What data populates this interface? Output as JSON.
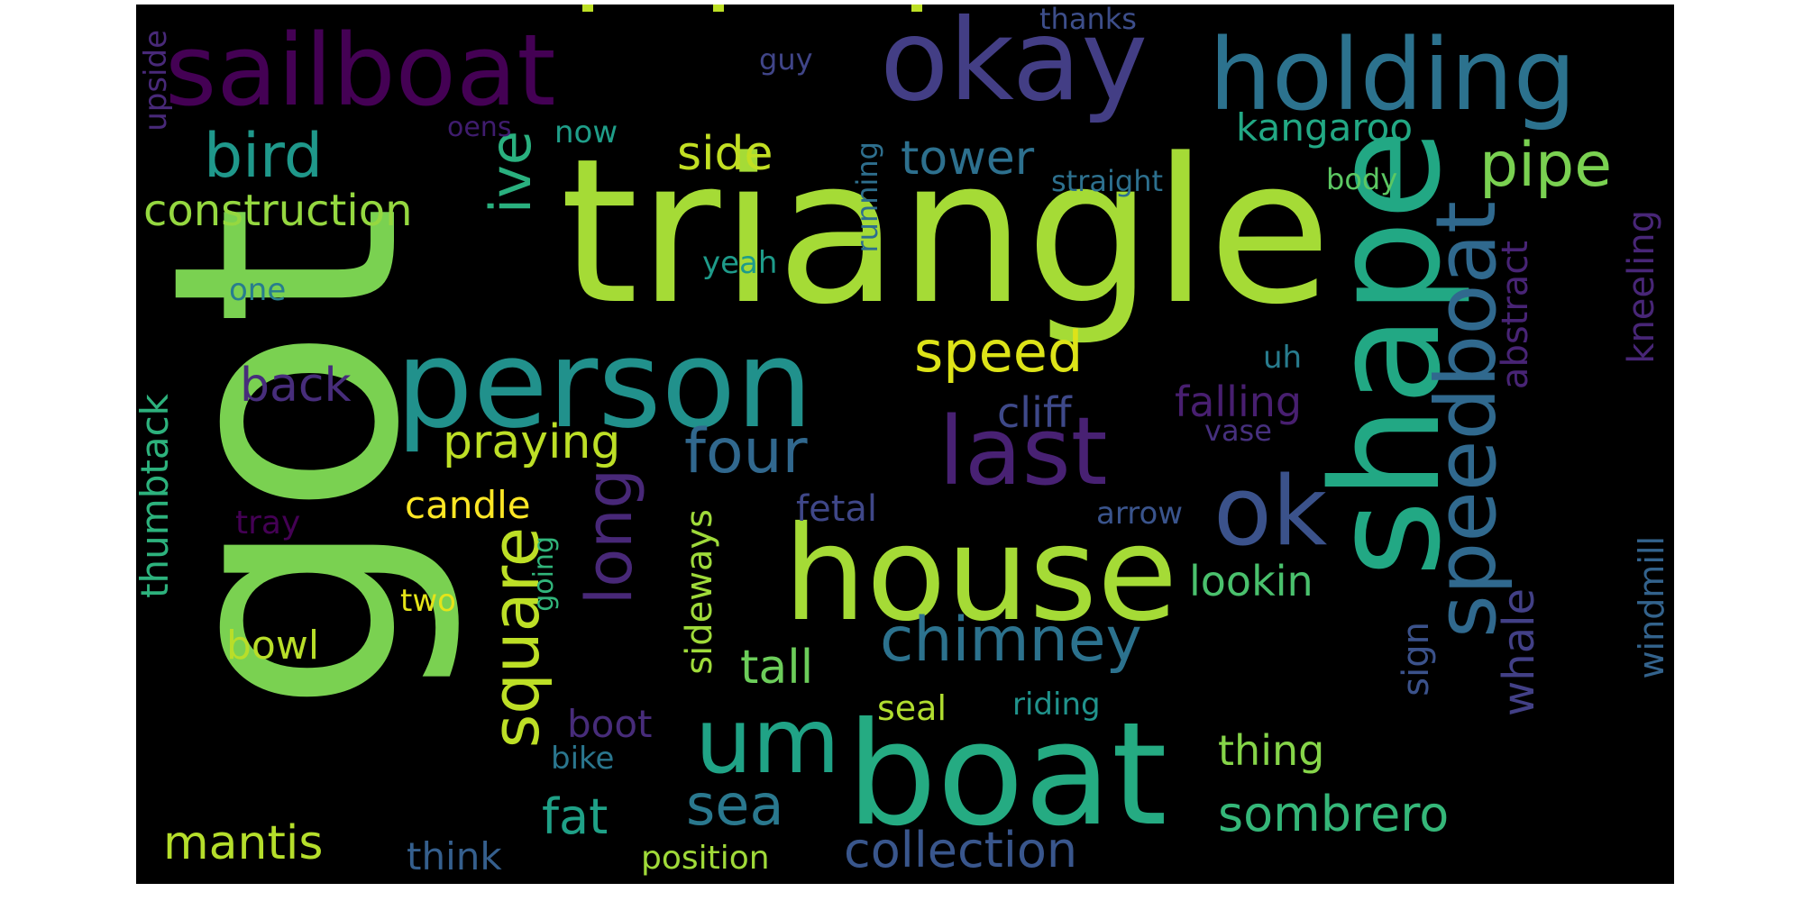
{
  "words": {
    "got": {
      "text": "got",
      "color": "#7ad151",
      "orientation": "vertical"
    },
    "triangle": {
      "text": "triangle",
      "color": "#a5db36",
      "orientation": "horizontal"
    },
    "shape": {
      "text": "shape",
      "color": "#22a884",
      "orientation": "vertical"
    },
    "boat": {
      "text": "boat",
      "color": "#25ab82",
      "orientation": "horizontal"
    },
    "house": {
      "text": "house",
      "color": "#a5db36",
      "orientation": "horizontal"
    },
    "person": {
      "text": "person",
      "color": "#21918c",
      "orientation": "horizontal"
    },
    "okay": {
      "text": "okay",
      "color": "#433e85",
      "orientation": "horizontal"
    },
    "sailboat": {
      "text": "sailboat",
      "color": "#440154",
      "orientation": "horizontal"
    },
    "holding": {
      "text": "holding",
      "color": "#2c728e",
      "orientation": "horizontal"
    },
    "speedboat": {
      "text": "speedboat",
      "color": "#30698e",
      "orientation": "vertical"
    },
    "last": {
      "text": "last",
      "color": "#482173",
      "orientation": "horizontal"
    },
    "ok": {
      "text": "ok",
      "color": "#3b528b",
      "orientation": "horizontal"
    },
    "um": {
      "text": "um",
      "color": "#20a386",
      "orientation": "horizontal"
    },
    "long": {
      "text": "long",
      "color": "#482878",
      "orientation": "vertical"
    },
    "square": {
      "text": "square",
      "color": "#bddf26",
      "orientation": "vertical"
    },
    "chimney": {
      "text": "chimney",
      "color": "#2c728e",
      "orientation": "horizontal"
    },
    "four": {
      "text": "four",
      "color": "#31688e",
      "orientation": "horizontal"
    },
    "pipe": {
      "text": "pipe",
      "color": "#7ad151",
      "orientation": "horizontal"
    },
    "bird": {
      "text": "bird",
      "color": "#1f988b",
      "orientation": "horizontal"
    },
    "sombrero": {
      "text": "sombrero",
      "color": "#35b779",
      "orientation": "horizontal"
    },
    "collection": {
      "text": "collection",
      "color": "#39568c",
      "orientation": "horizontal"
    },
    "sea": {
      "text": "sea",
      "color": "#2a788e",
      "orientation": "horizontal"
    },
    "speed": {
      "text": "speed",
      "color": "#dde318",
      "orientation": "horizontal"
    },
    "ive": {
      "text": "ive",
      "color": "#2ab07f",
      "orientation": "vertical"
    },
    "praying": {
      "text": "praying",
      "color": "#bddf26",
      "orientation": "horizontal"
    },
    "construction": {
      "text": "construction",
      "color": "#95d840",
      "orientation": "horizontal"
    },
    "mantis": {
      "text": "mantis",
      "color": "#b5de2b",
      "orientation": "horizontal"
    },
    "tall": {
      "text": "tall",
      "color": "#6ccd5a",
      "orientation": "horizontal"
    },
    "fat": {
      "text": "fat",
      "color": "#1fa187",
      "orientation": "horizontal"
    },
    "side": {
      "text": "side",
      "color": "#c2df23",
      "orientation": "horizontal"
    },
    "tower": {
      "text": "tower",
      "color": "#2d708e",
      "orientation": "horizontal"
    },
    "kangaroo": {
      "text": "kangaroo",
      "color": "#22a884",
      "orientation": "horizontal"
    },
    "back": {
      "text": "back",
      "color": "#472d7b",
      "orientation": "horizontal"
    },
    "whale": {
      "text": "whale",
      "color": "#424086",
      "orientation": "vertical"
    },
    "thing": {
      "text": "thing",
      "color": "#86d549",
      "orientation": "horizontal"
    },
    "cliff": {
      "text": "cliff",
      "color": "#3e4989",
      "orientation": "horizontal"
    },
    "falling": {
      "text": "falling",
      "color": "#481f70",
      "orientation": "horizontal"
    },
    "lookin": {
      "text": "lookin",
      "color": "#4ac16d",
      "orientation": "horizontal"
    },
    "candle": {
      "text": "candle",
      "color": "#fde725",
      "orientation": "horizontal"
    },
    "bowl": {
      "text": "bowl",
      "color": "#b8de29",
      "orientation": "horizontal"
    },
    "thumbtack": {
      "text": "thumbtack",
      "color": "#2db27d",
      "orientation": "vertical"
    },
    "abstract": {
      "text": "abstract",
      "color": "#482475",
      "orientation": "vertical"
    },
    "kneeling": {
      "text": "kneeling",
      "color": "#482677",
      "orientation": "vertical"
    },
    "windmill": {
      "text": "windmill",
      "color": "#33638d",
      "orientation": "vertical"
    },
    "sideways": {
      "text": "sideways",
      "color": "#9fda3a",
      "orientation": "vertical"
    },
    "sign": {
      "text": "sign",
      "color": "#3b528b",
      "orientation": "vertical"
    },
    "fetal": {
      "text": "fetal",
      "color": "#3f4788",
      "orientation": "horizontal"
    },
    "think": {
      "text": "think",
      "color": "#355f8d",
      "orientation": "horizontal"
    },
    "position": {
      "text": "position",
      "color": "#a0da39",
      "orientation": "horizontal"
    },
    "seal": {
      "text": "seal",
      "color": "#b0dd2f",
      "orientation": "horizontal"
    },
    "riding": {
      "text": "riding",
      "color": "#20938c",
      "orientation": "horizontal"
    },
    "boot": {
      "text": "boot",
      "color": "#472c7a",
      "orientation": "horizontal"
    },
    "bike": {
      "text": "bike",
      "color": "#2a768e",
      "orientation": "horizontal"
    },
    "two": {
      "text": "two",
      "color": "#e5e419",
      "orientation": "horizontal"
    },
    "going": {
      "text": "going",
      "color": "#31b57b",
      "orientation": "vertical"
    },
    "tray": {
      "text": "tray",
      "color": "#440154",
      "orientation": "horizontal"
    },
    "arrow": {
      "text": "arrow",
      "color": "#3a548c",
      "orientation": "horizontal"
    },
    "vase": {
      "text": "vase",
      "color": "#46307e",
      "orientation": "horizontal"
    },
    "uh": {
      "text": "uh",
      "color": "#287c8e",
      "orientation": "horizontal"
    },
    "yeah": {
      "text": "yeah",
      "color": "#1e9b8a",
      "orientation": "horizontal"
    },
    "running": {
      "text": "running",
      "color": "#2e6f8e",
      "orientation": "vertical"
    },
    "one": {
      "text": "one",
      "color": "#287d8e",
      "orientation": "horizontal"
    },
    "upside": {
      "text": "upside",
      "color": "#482979",
      "orientation": "vertical"
    },
    "straight": {
      "text": "straight",
      "color": "#2d708e",
      "orientation": "horizontal"
    },
    "body": {
      "text": "body",
      "color": "#5cc863",
      "orientation": "horizontal"
    },
    "now": {
      "text": "now",
      "color": "#1f9e89",
      "orientation": "horizontal"
    },
    "oens": {
      "text": "oens",
      "color": "#3f1c6e",
      "orientation": "horizontal"
    },
    "guy": {
      "text": "guy",
      "color": "#404588",
      "orientation": "horizontal"
    },
    "thanks": {
      "text": "thanks",
      "color": "#3d4e8a",
      "orientation": "horizontal"
    }
  }
}
